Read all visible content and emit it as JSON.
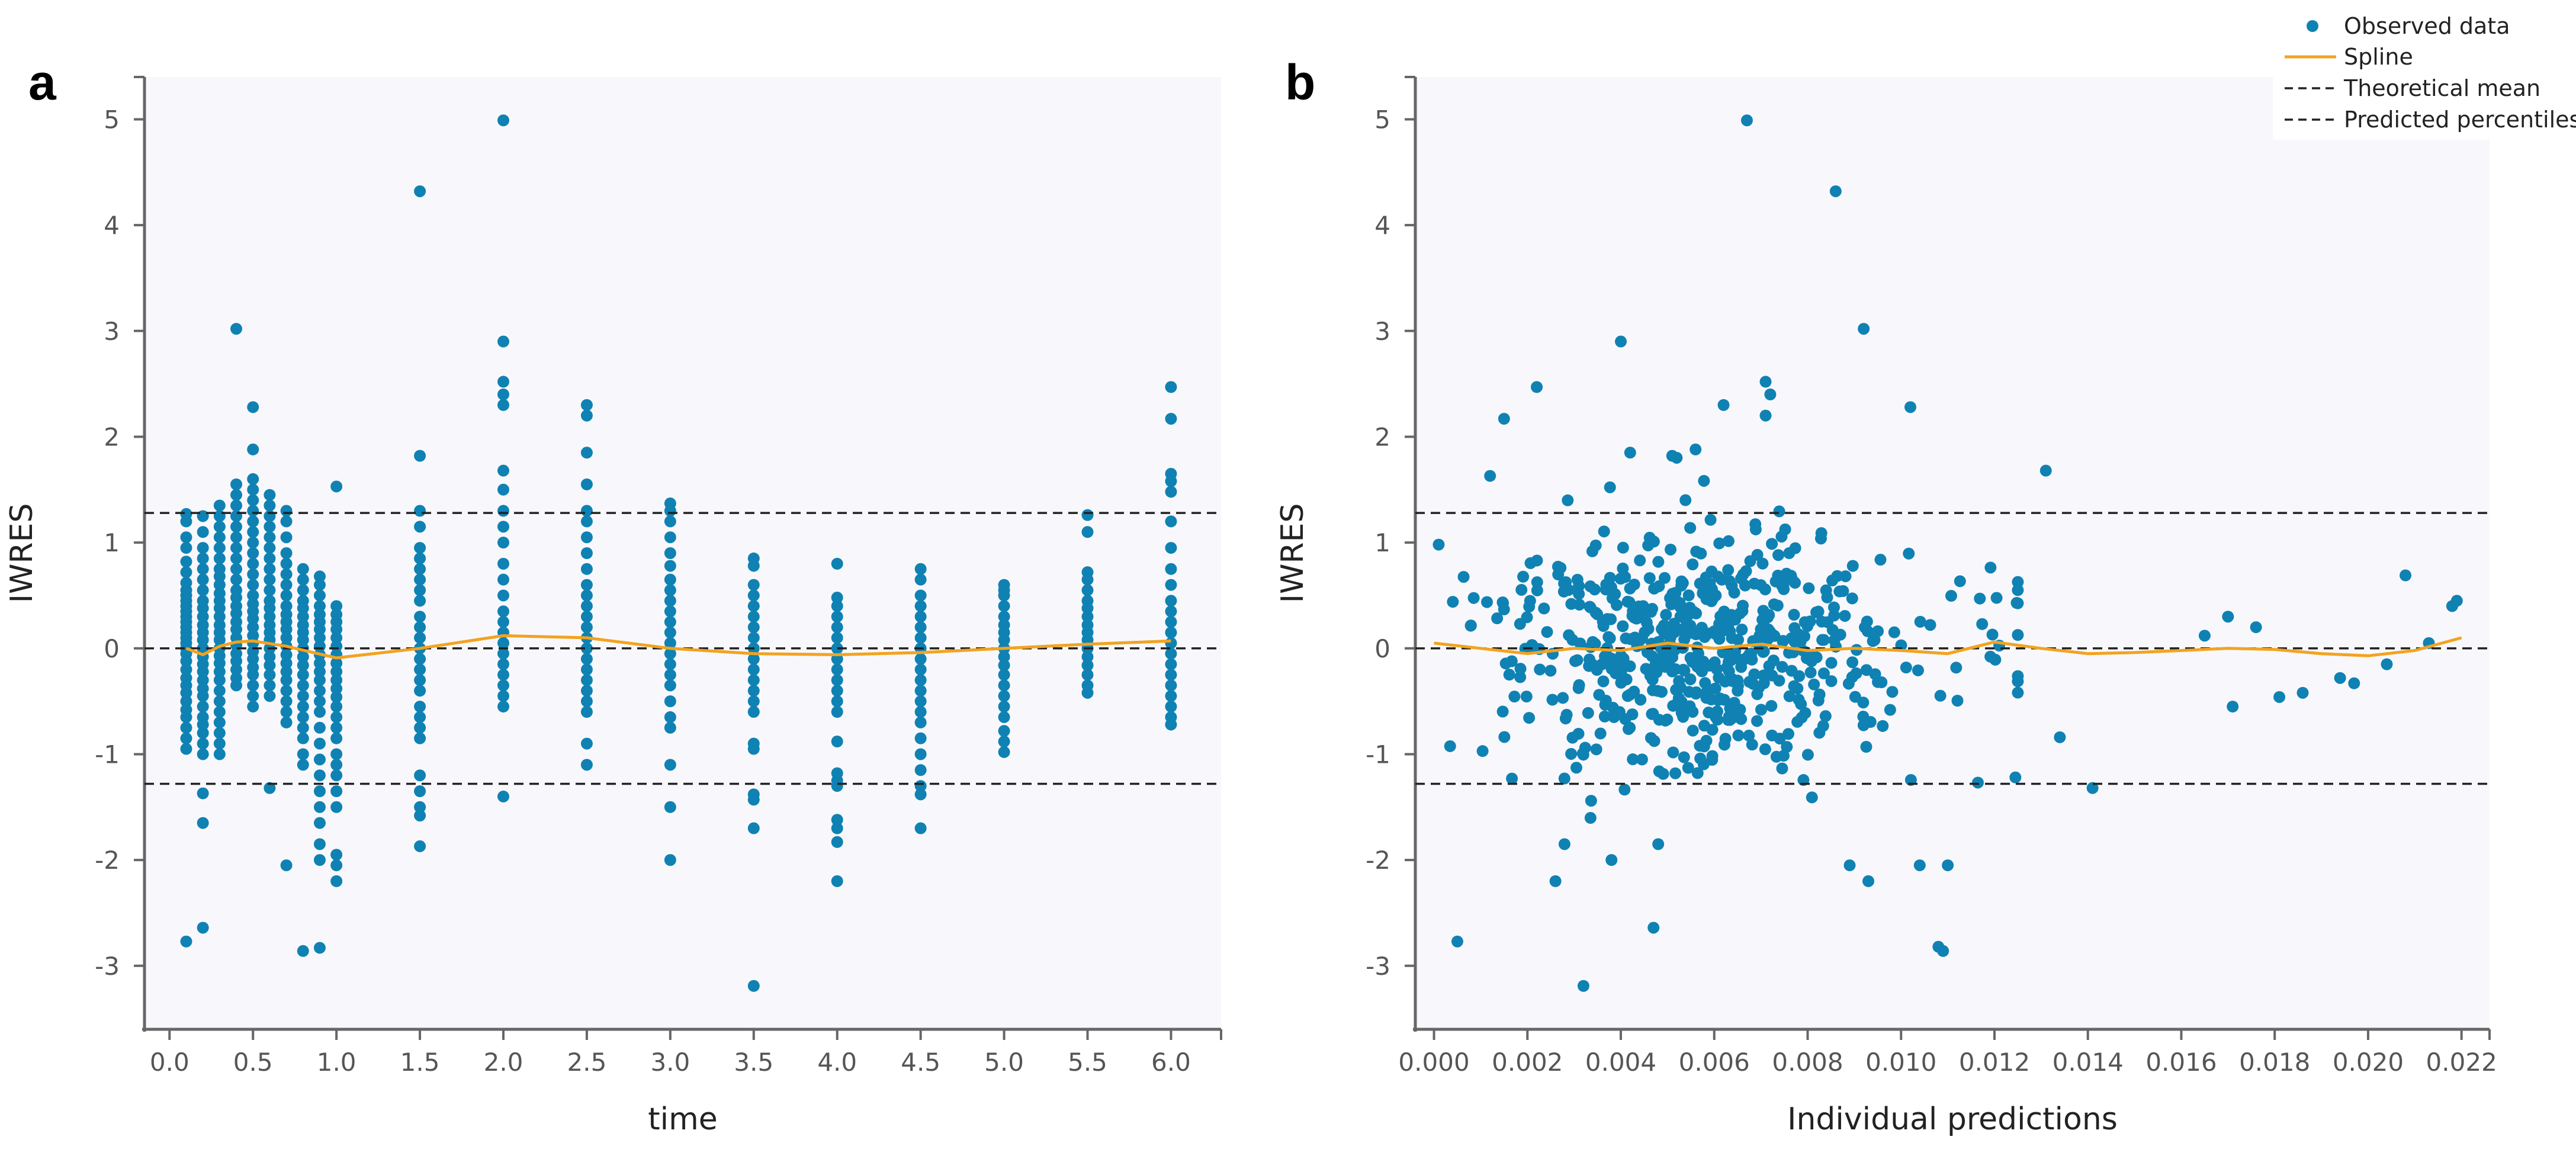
{
  "panels": [
    {
      "letter": "a",
      "xlabel": "time",
      "ylabel": "IWRES",
      "xticks": [
        "0.0",
        "0.5",
        "1.0",
        "1.5",
        "2.0",
        "2.5",
        "3.0",
        "3.5",
        "4.0",
        "4.5",
        "5.0",
        "5.5",
        "6.0"
      ],
      "yticks": [
        "-3",
        "-2",
        "-1",
        "0",
        "1",
        "2",
        "3",
        "4",
        "5"
      ]
    },
    {
      "letter": "b",
      "xlabel": "Individual predictions",
      "ylabel": "IWRES",
      "xticks": [
        "0.000",
        "0.002",
        "0.004",
        "0.006",
        "0.008",
        "0.010",
        "0.012",
        "0.014",
        "0.016",
        "0.018",
        "0.020",
        "0.022"
      ],
      "yticks": [
        "-3",
        "-2",
        "-1",
        "0",
        "1",
        "2",
        "3",
        "4",
        "5"
      ]
    }
  ],
  "legend": {
    "observed": "Observed data",
    "spline": "Spline",
    "theoretical_mean": "Theoretical mean",
    "predicted_percentiles": "Predicted percentiles"
  },
  "colors": {
    "points": "#0f82b3",
    "spline": "#f2a320",
    "reference": "#222222",
    "plot_bg": "#f8f8fc",
    "axis": "#666666"
  },
  "chart_data": [
    {
      "type": "scatter",
      "title": "a",
      "xlabel": "time",
      "ylabel": "IWRES",
      "xlim": [
        -0.15,
        6.3
      ],
      "ylim": [
        -3.6,
        5.4
      ],
      "theoretical_mean": 0,
      "predicted_percentiles": [
        -1.28,
        1.28
      ],
      "spline": {
        "x": [
          0.1,
          0.2,
          0.3,
          0.4,
          0.5,
          0.7,
          1.0,
          1.5,
          2.0,
          2.5,
          3.0,
          3.5,
          4.0,
          4.5,
          5.0,
          5.5,
          6.0
        ],
        "y": [
          0.0,
          -0.06,
          0.02,
          0.06,
          0.07,
          0.02,
          -0.09,
          0.0,
          0.12,
          0.1,
          0.0,
          -0.05,
          -0.06,
          -0.04,
          0.0,
          0.04,
          0.07
        ]
      },
      "series": [
        {
          "x": 0.1,
          "y": [
            1.27,
            1.2,
            1.05,
            0.95,
            0.82,
            0.72,
            0.62,
            0.55,
            0.5,
            0.45,
            0.4,
            0.35,
            0.3,
            0.25,
            0.2,
            0.15,
            0.1,
            0.05,
            0.0,
            -0.05,
            -0.12,
            -0.2,
            -0.28,
            -0.35,
            -0.42,
            -0.5,
            -0.58,
            -0.65,
            -0.75,
            -0.85,
            -0.95,
            -2.77
          ]
        },
        {
          "x": 0.2,
          "y": [
            1.25,
            1.1,
            0.95,
            0.85,
            0.75,
            0.65,
            0.55,
            0.45,
            0.38,
            0.3,
            0.22,
            0.15,
            0.08,
            0.0,
            -0.08,
            -0.15,
            -0.22,
            -0.3,
            -0.38,
            -0.45,
            -0.55,
            -0.65,
            -0.72,
            -0.8,
            -0.9,
            -1.0,
            -1.37,
            -1.65,
            -2.64
          ]
        },
        {
          "x": 0.3,
          "y": [
            1.35,
            1.25,
            1.15,
            1.05,
            0.95,
            0.85,
            0.75,
            0.68,
            0.6,
            0.52,
            0.45,
            0.38,
            0.3,
            0.22,
            0.15,
            0.08,
            0.0,
            -0.07,
            -0.14,
            -0.22,
            -0.3,
            -0.4,
            -0.5,
            -0.6,
            -0.7,
            -0.8,
            -0.9,
            -1.0
          ]
        },
        {
          "x": 0.4,
          "y": [
            3.02,
            1.55,
            1.45,
            1.35,
            1.25,
            1.15,
            1.05,
            0.95,
            0.85,
            0.75,
            0.65,
            0.55,
            0.48,
            0.4,
            0.33,
            0.25,
            0.18,
            0.1,
            0.03,
            -0.05,
            -0.12,
            -0.2,
            -0.28,
            -0.35
          ]
        },
        {
          "x": 0.5,
          "y": [
            2.28,
            1.88,
            1.6,
            1.5,
            1.4,
            1.3,
            1.2,
            1.1,
            1.0,
            0.9,
            0.8,
            0.7,
            0.6,
            0.5,
            0.42,
            0.35,
            0.28,
            0.2,
            0.12,
            0.05,
            -0.03,
            -0.1,
            -0.18,
            -0.25,
            -0.35,
            -0.45,
            -0.55
          ]
        },
        {
          "x": 0.6,
          "y": [
            1.45,
            1.35,
            1.25,
            1.15,
            1.05,
            0.95,
            0.85,
            0.75,
            0.65,
            0.55,
            0.45,
            0.38,
            0.3,
            0.22,
            0.15,
            0.08,
            0.0,
            -0.08,
            -0.16,
            -0.25,
            -0.35,
            -0.45,
            -1.32
          ]
        },
        {
          "x": 0.7,
          "y": [
            1.3,
            1.2,
            1.05,
            0.9,
            0.8,
            0.7,
            0.6,
            0.5,
            0.4,
            0.32,
            0.25,
            0.18,
            0.1,
            0.02,
            -0.06,
            -0.14,
            -0.22,
            -0.3,
            -0.4,
            -0.5,
            -0.6,
            -0.7,
            -2.05
          ]
        },
        {
          "x": 0.8,
          "y": [
            0.75,
            0.65,
            0.55,
            0.45,
            0.38,
            0.3,
            0.22,
            0.15,
            0.08,
            0.0,
            -0.08,
            -0.16,
            -0.25,
            -0.35,
            -0.45,
            -0.55,
            -0.65,
            -0.75,
            -0.85,
            -1.0,
            -1.1,
            -2.86
          ]
        },
        {
          "x": 0.9,
          "y": [
            0.68,
            0.6,
            0.5,
            0.4,
            0.32,
            0.25,
            0.18,
            0.1,
            0.02,
            -0.06,
            -0.14,
            -0.22,
            -0.3,
            -0.4,
            -0.5,
            -0.6,
            -0.75,
            -0.9,
            -1.05,
            -1.2,
            -1.35,
            -1.5,
            -1.65,
            -1.85,
            -2.0,
            -2.83
          ]
        },
        {
          "x": 1.0,
          "y": [
            1.53,
            0.4,
            0.32,
            0.25,
            0.18,
            0.1,
            0.02,
            -0.06,
            -0.14,
            -0.22,
            -0.3,
            -0.38,
            -0.46,
            -0.55,
            -0.65,
            -0.75,
            -0.85,
            -1.0,
            -1.1,
            -1.2,
            -1.35,
            -1.5,
            -1.95,
            -2.05,
            -2.2
          ]
        },
        {
          "x": 1.5,
          "y": [
            4.32,
            1.82,
            1.3,
            1.15,
            0.95,
            0.85,
            0.75,
            0.65,
            0.55,
            0.45,
            0.3,
            0.2,
            0.1,
            0.0,
            -0.1,
            -0.2,
            -0.3,
            -0.4,
            -0.55,
            -0.65,
            -0.75,
            -0.85,
            -1.2,
            -1.35,
            -1.5,
            -1.58,
            -1.87
          ]
        },
        {
          "x": 2.0,
          "y": [
            4.99,
            2.9,
            2.52,
            2.4,
            2.3,
            1.68,
            1.5,
            1.3,
            1.15,
            1.0,
            0.8,
            0.65,
            0.5,
            0.35,
            0.25,
            0.15,
            0.05,
            -0.05,
            -0.15,
            -0.25,
            -0.35,
            -0.45,
            -0.55,
            -1.4
          ]
        },
        {
          "x": 2.5,
          "y": [
            2.3,
            2.2,
            1.85,
            1.55,
            1.3,
            1.2,
            1.05,
            0.9,
            0.75,
            0.6,
            0.5,
            0.4,
            0.3,
            0.2,
            0.1,
            0.0,
            -0.1,
            -0.2,
            -0.3,
            -0.4,
            -0.5,
            -0.6,
            -0.9,
            -1.1
          ]
        },
        {
          "x": 3.0,
          "y": [
            1.37,
            1.3,
            1.2,
            1.05,
            0.9,
            0.78,
            0.65,
            0.55,
            0.45,
            0.35,
            0.25,
            0.15,
            0.05,
            -0.05,
            -0.15,
            -0.25,
            -0.35,
            -0.5,
            -0.65,
            -0.75,
            -1.1,
            -1.5,
            -2.0
          ]
        },
        {
          "x": 3.5,
          "y": [
            0.85,
            0.78,
            0.6,
            0.5,
            0.4,
            0.3,
            0.2,
            0.1,
            0.0,
            -0.1,
            -0.2,
            -0.3,
            -0.4,
            -0.5,
            -0.6,
            -0.9,
            -0.95,
            -1.38,
            -1.43,
            -1.7,
            -3.19
          ]
        },
        {
          "x": 4.0,
          "y": [
            0.8,
            0.48,
            0.4,
            0.3,
            0.2,
            0.1,
            0.0,
            -0.1,
            -0.2,
            -0.3,
            -0.4,
            -0.5,
            -0.6,
            -0.88,
            -1.18,
            -1.25,
            -1.3,
            -1.62,
            -1.7,
            -1.83,
            -2.2
          ]
        },
        {
          "x": 4.5,
          "y": [
            0.75,
            0.65,
            0.5,
            0.4,
            0.3,
            0.2,
            0.1,
            0.0,
            -0.1,
            -0.2,
            -0.3,
            -0.4,
            -0.5,
            -0.6,
            -0.7,
            -0.85,
            -1.0,
            -1.15,
            -1.3,
            -1.38,
            -1.7
          ]
        },
        {
          "x": 5.0,
          "y": [
            0.6,
            0.55,
            0.5,
            0.4,
            0.3,
            0.22,
            0.15,
            0.08,
            0.0,
            -0.08,
            -0.16,
            -0.25,
            -0.35,
            -0.45,
            -0.55,
            -0.65,
            -0.78,
            -0.88,
            -0.98
          ]
        },
        {
          "x": 5.5,
          "y": [
            1.26,
            1.1,
            0.72,
            0.65,
            0.55,
            0.45,
            0.38,
            0.3,
            0.22,
            0.15,
            0.08,
            0.0,
            -0.08,
            -0.16,
            -0.25,
            -0.35,
            -0.42
          ]
        },
        {
          "x": 6.0,
          "y": [
            2.47,
            2.17,
            1.65,
            1.58,
            1.48,
            1.2,
            0.95,
            0.75,
            0.6,
            0.45,
            0.35,
            0.25,
            0.15,
            0.05,
            -0.05,
            -0.15,
            -0.25,
            -0.35,
            -0.45,
            -0.55,
            -0.65,
            -0.72
          ]
        }
      ]
    },
    {
      "type": "scatter",
      "title": "b",
      "xlabel": "Individual predictions",
      "ylabel": "IWRES",
      "xlim": [
        -0.0004,
        0.0226
      ],
      "ylim": [
        -3.6,
        5.4
      ],
      "theoretical_mean": 0,
      "predicted_percentiles": [
        -1.28,
        1.28
      ],
      "spline": {
        "x": [
          0.0,
          0.001,
          0.002,
          0.003,
          0.004,
          0.005,
          0.006,
          0.007,
          0.008,
          0.009,
          0.01,
          0.011,
          0.012,
          0.013,
          0.014,
          0.015,
          0.016,
          0.017,
          0.018,
          0.019,
          0.02,
          0.021,
          0.022
        ],
        "y": [
          0.05,
          0.0,
          -0.05,
          0.0,
          -0.02,
          0.05,
          0.0,
          0.04,
          -0.02,
          0.0,
          -0.02,
          -0.05,
          0.06,
          0.0,
          -0.05,
          -0.04,
          -0.02,
          0.0,
          -0.01,
          -0.05,
          -0.07,
          -0.02,
          0.1
        ]
      },
      "notable_points": [
        {
          "x": 0.0067,
          "y": 4.99
        },
        {
          "x": 0.0086,
          "y": 4.32
        },
        {
          "x": 0.0092,
          "y": 3.02
        },
        {
          "x": 0.004,
          "y": 2.9
        },
        {
          "x": 0.0071,
          "y": 2.52
        },
        {
          "x": 0.0022,
          "y": 2.47
        },
        {
          "x": 0.0072,
          "y": 2.4
        },
        {
          "x": 0.0062,
          "y": 2.3
        },
        {
          "x": 0.0102,
          "y": 2.28
        },
        {
          "x": 0.0071,
          "y": 2.2
        },
        {
          "x": 0.0015,
          "y": 2.17
        },
        {
          "x": 0.0056,
          "y": 1.88
        },
        {
          "x": 0.0042,
          "y": 1.85
        },
        {
          "x": 0.0051,
          "y": 1.82
        },
        {
          "x": 0.0131,
          "y": 1.68
        },
        {
          "x": 0.0012,
          "y": 1.63
        },
        {
          "x": 0.0208,
          "y": 0.69
        },
        {
          "x": 0.0219,
          "y": 0.45
        },
        {
          "x": 0.0218,
          "y": 0.4
        },
        {
          "x": 0.0005,
          "y": -2.77
        },
        {
          "x": 0.0032,
          "y": -3.19
        },
        {
          "x": 0.0108,
          "y": -2.82
        },
        {
          "x": 0.0109,
          "y": -2.86
        },
        {
          "x": 0.0047,
          "y": -2.64
        },
        {
          "x": 0.0026,
          "y": -2.2
        },
        {
          "x": 0.0093,
          "y": -2.2
        },
        {
          "x": 0.0089,
          "y": -2.05
        },
        {
          "x": 0.0104,
          "y": -2.05
        },
        {
          "x": 0.011,
          "y": -2.05
        },
        {
          "x": 0.0038,
          "y": -2.0
        },
        {
          "x": 0.0141,
          "y": -1.32
        },
        {
          "x": 0.0134,
          "y": -0.84
        },
        {
          "x": 0.0171,
          "y": -0.55
        },
        {
          "x": 0.0181,
          "y": -0.46
        },
        {
          "x": 0.0186,
          "y": -0.42
        },
        {
          "x": 0.0194,
          "y": -0.28
        },
        {
          "x": 0.0197,
          "y": -0.33
        },
        {
          "x": 0.0204,
          "y": -0.15
        },
        {
          "x": 0.0213,
          "y": 0.05
        },
        {
          "x": 0.0165,
          "y": 0.12
        },
        {
          "x": 0.017,
          "y": 0.3
        },
        {
          "x": 0.0176,
          "y": 0.2
        }
      ],
      "cloud": {
        "x_center": 0.0055,
        "x_spread": 0.0035,
        "y_spread": 0.55,
        "count": 620
      }
    }
  ]
}
